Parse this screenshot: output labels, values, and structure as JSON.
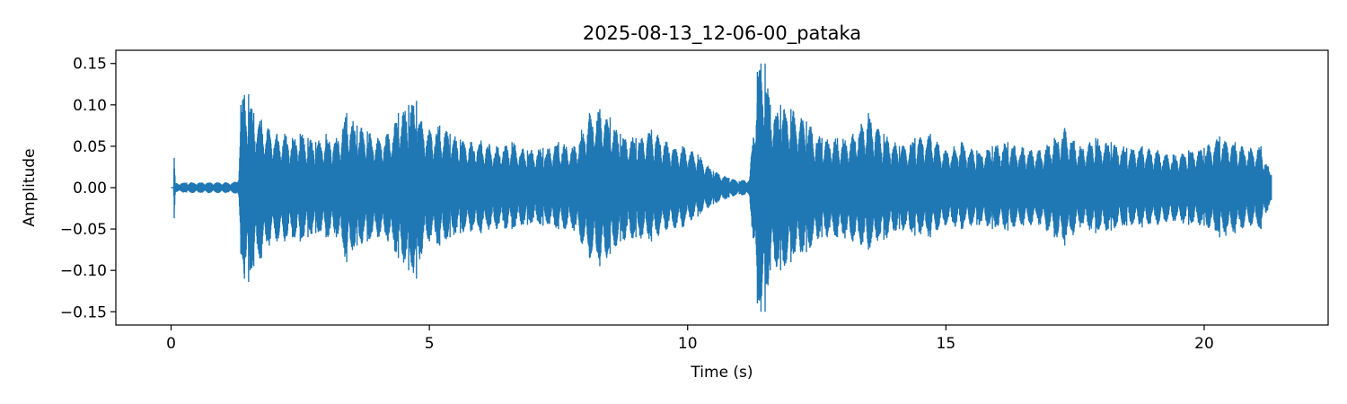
{
  "chart_data": {
    "type": "line",
    "title": "2025-08-13_12-06-00_pataka",
    "xlabel": "Time (s)",
    "ylabel": "Amplitude",
    "xlim": [
      -1.07,
      22.4
    ],
    "ylim": [
      -0.166,
      0.166
    ],
    "xticks": [
      0,
      5,
      10,
      15,
      20
    ],
    "xtick_labels": [
      "0",
      "5",
      "10",
      "15",
      "20"
    ],
    "yticks": [
      0.15,
      0.1,
      0.05,
      0.0,
      -0.05,
      -0.1,
      -0.15
    ],
    "ytick_labels": [
      "0.15",
      "0.10",
      "0.05",
      "0.00",
      "−0.05",
      "−0.10",
      "−0.15"
    ],
    "grid": false,
    "series": [
      {
        "color": "#1f77b4",
        "envelope": {
          "t": [
            0.0,
            0.05,
            0.06,
            0.08,
            0.1,
            0.3,
            0.6,
            0.9,
            1.2,
            1.3,
            1.35,
            1.42,
            1.5,
            1.6,
            1.75,
            1.9,
            2.05,
            2.2,
            2.35,
            2.5,
            2.65,
            2.8,
            3.0,
            3.2,
            3.4,
            3.6,
            3.8,
            4.0,
            4.2,
            4.4,
            4.6,
            4.75,
            4.85,
            5.0,
            5.2,
            5.4,
            5.6,
            5.8,
            6.0,
            6.3,
            6.6,
            6.9,
            7.2,
            7.5,
            7.8,
            8.1,
            8.3,
            8.5,
            8.7,
            9.0,
            9.3,
            9.6,
            9.9,
            10.2,
            10.5,
            10.8,
            11.0,
            11.2,
            11.35,
            11.42,
            11.5,
            11.6,
            11.8,
            12.0,
            12.3,
            12.6,
            12.9,
            13.2,
            13.5,
            13.8,
            14.1,
            14.4,
            14.7,
            15.0,
            15.3,
            15.6,
            15.9,
            16.2,
            16.5,
            16.8,
            17.1,
            17.3,
            17.6,
            17.9,
            18.2,
            18.5,
            18.8,
            19.1,
            19.4,
            19.7,
            20.0,
            20.3,
            20.6,
            20.9,
            21.1,
            21.3
          ],
          "max": [
            0.0,
            0.0,
            0.036,
            0.005,
            0.005,
            0.006,
            0.006,
            0.006,
            0.006,
            0.008,
            0.1,
            0.112,
            0.113,
            0.09,
            0.082,
            0.07,
            0.065,
            0.065,
            0.06,
            0.065,
            0.06,
            0.055,
            0.065,
            0.06,
            0.09,
            0.075,
            0.068,
            0.06,
            0.065,
            0.09,
            0.1,
            0.105,
            0.08,
            0.07,
            0.075,
            0.065,
            0.058,
            0.055,
            0.057,
            0.05,
            0.055,
            0.045,
            0.048,
            0.055,
            0.05,
            0.09,
            0.095,
            0.085,
            0.065,
            0.06,
            0.07,
            0.055,
            0.05,
            0.04,
            0.02,
            0.012,
            0.008,
            0.01,
            0.14,
            0.15,
            0.15,
            0.1,
            0.1,
            0.095,
            0.08,
            0.06,
            0.06,
            0.065,
            0.09,
            0.065,
            0.05,
            0.06,
            0.065,
            0.045,
            0.055,
            0.045,
            0.05,
            0.055,
            0.048,
            0.045,
            0.06,
            0.072,
            0.05,
            0.06,
            0.055,
            0.048,
            0.05,
            0.045,
            0.04,
            0.045,
            0.048,
            0.062,
            0.055,
            0.048,
            0.05,
            0.015
          ],
          "min": [
            0.0,
            0.0,
            -0.037,
            -0.005,
            -0.005,
            -0.006,
            -0.006,
            -0.006,
            -0.006,
            -0.008,
            -0.08,
            -0.11,
            -0.114,
            -0.095,
            -0.085,
            -0.07,
            -0.065,
            -0.065,
            -0.06,
            -0.065,
            -0.06,
            -0.055,
            -0.06,
            -0.06,
            -0.09,
            -0.07,
            -0.065,
            -0.06,
            -0.065,
            -0.085,
            -0.1,
            -0.11,
            -0.08,
            -0.065,
            -0.07,
            -0.06,
            -0.055,
            -0.053,
            -0.055,
            -0.05,
            -0.05,
            -0.045,
            -0.046,
            -0.05,
            -0.052,
            -0.085,
            -0.095,
            -0.08,
            -0.065,
            -0.06,
            -0.065,
            -0.05,
            -0.048,
            -0.035,
            -0.02,
            -0.012,
            -0.008,
            -0.01,
            -0.14,
            -0.15,
            -0.15,
            -0.1,
            -0.1,
            -0.09,
            -0.078,
            -0.06,
            -0.06,
            -0.065,
            -0.075,
            -0.063,
            -0.05,
            -0.058,
            -0.06,
            -0.045,
            -0.05,
            -0.045,
            -0.05,
            -0.052,
            -0.046,
            -0.045,
            -0.06,
            -0.07,
            -0.048,
            -0.055,
            -0.052,
            -0.046,
            -0.048,
            -0.045,
            -0.04,
            -0.045,
            -0.046,
            -0.06,
            -0.055,
            -0.046,
            -0.05,
            -0.015
          ]
        }
      }
    ]
  }
}
